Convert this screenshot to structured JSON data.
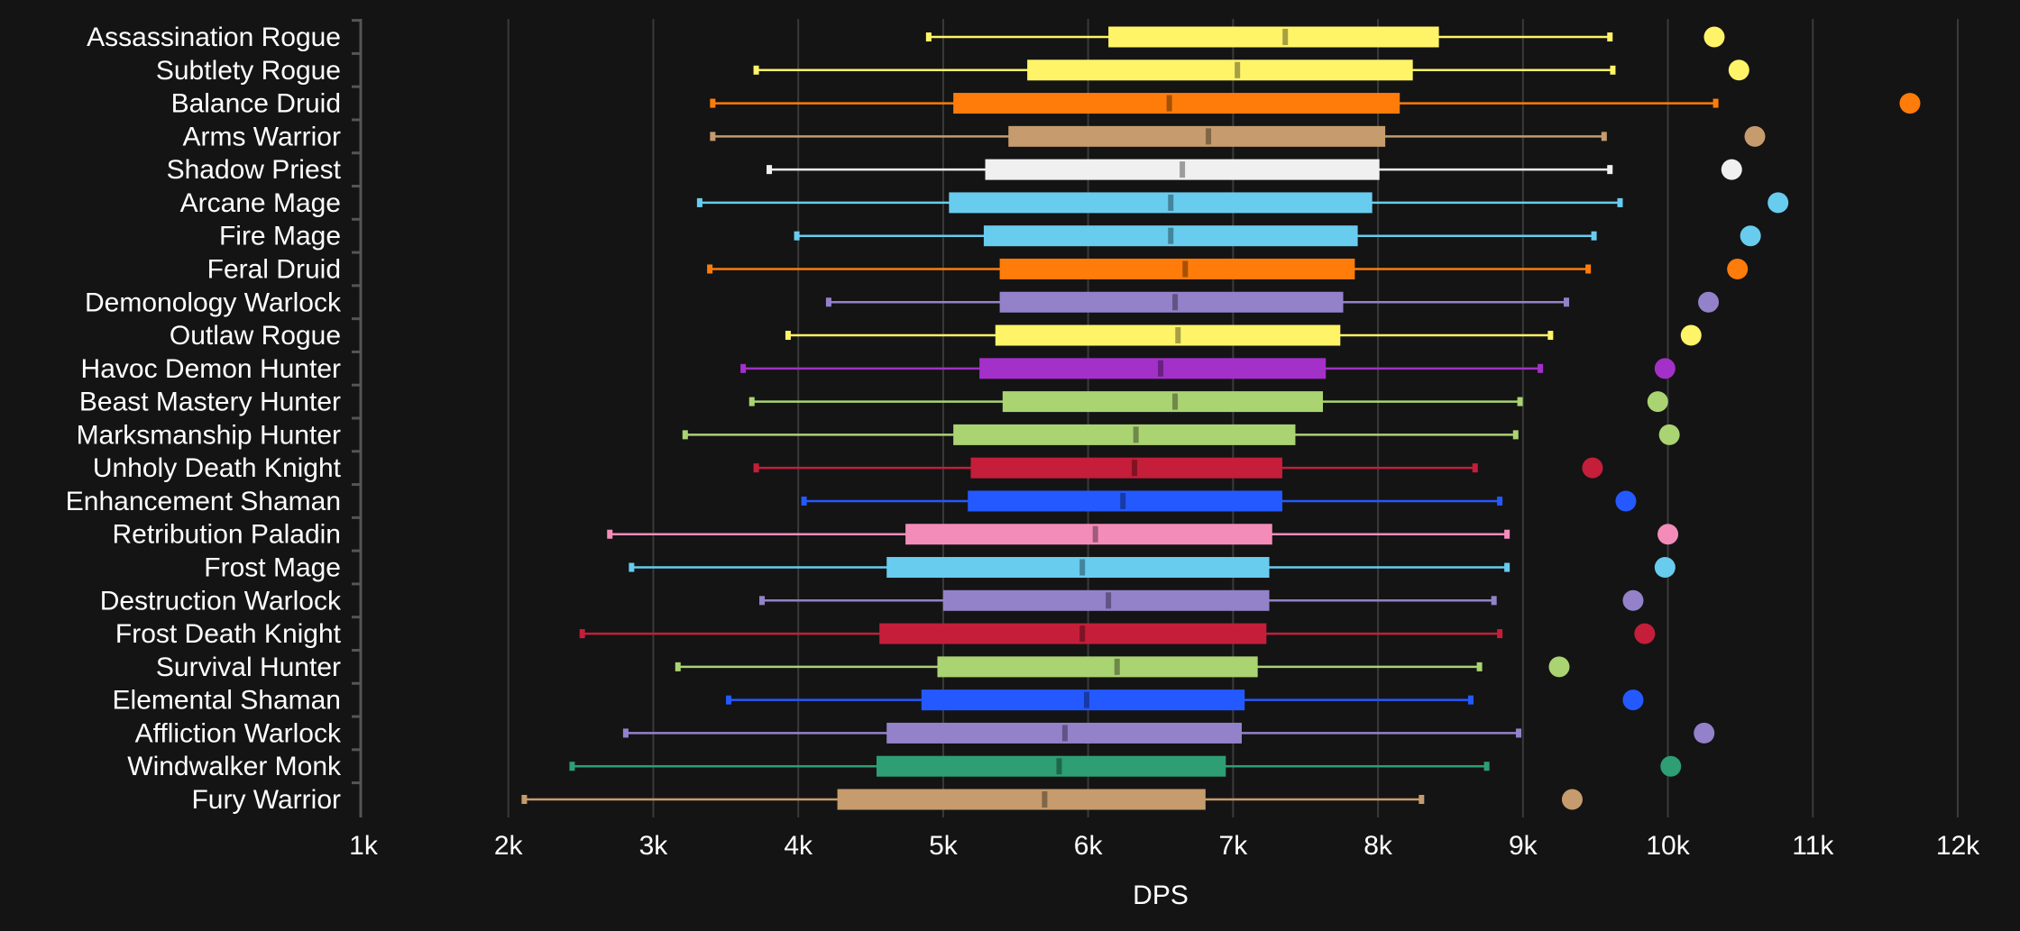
{
  "chart_data": {
    "type": "box",
    "title": "",
    "xlabel": "DPS",
    "ylabel": "",
    "xlim": [
      1000,
      12000
    ],
    "xticks": [
      1000,
      2000,
      3000,
      4000,
      5000,
      6000,
      7000,
      8000,
      9000,
      10000,
      11000,
      12000
    ],
    "xtick_labels": [
      "1k",
      "2k",
      "3k",
      "4k",
      "5k",
      "6k",
      "7k",
      "8k",
      "9k",
      "10k",
      "11k",
      "12k"
    ],
    "grid": "vertical",
    "legend": "none",
    "series": [
      {
        "name": "Assassination Rogue",
        "color": "#FFF468",
        "min": 4900,
        "q1": 6140,
        "median": 7360,
        "q3": 8420,
        "max": 9600,
        "point": 10320
      },
      {
        "name": "Subtlety Rogue",
        "color": "#FFF468",
        "min": 3710,
        "q1": 5580,
        "median": 7030,
        "q3": 8240,
        "max": 9620,
        "point": 10490
      },
      {
        "name": "Balance Druid",
        "color": "#FF7C0A",
        "min": 3410,
        "q1": 5070,
        "median": 6560,
        "q3": 8150,
        "max": 10330,
        "point": 11670
      },
      {
        "name": "Arms Warrior",
        "color": "#C69B6D",
        "min": 3410,
        "q1": 5450,
        "median": 6830,
        "q3": 8050,
        "max": 9560,
        "point": 10600
      },
      {
        "name": "Shadow Priest",
        "color": "#F0F0F0",
        "min": 3800,
        "q1": 5290,
        "median": 6650,
        "q3": 8010,
        "max": 9600,
        "point": 10440
      },
      {
        "name": "Arcane Mage",
        "color": "#68CCEF",
        "min": 3320,
        "q1": 5040,
        "median": 6570,
        "q3": 7960,
        "max": 9670,
        "point": 10760
      },
      {
        "name": "Fire Mage",
        "color": "#68CCEF",
        "min": 3990,
        "q1": 5280,
        "median": 6570,
        "q3": 7860,
        "max": 9490,
        "point": 10570
      },
      {
        "name": "Feral Druid",
        "color": "#FF7C0A",
        "min": 3390,
        "q1": 5390,
        "median": 6670,
        "q3": 7840,
        "max": 9450,
        "point": 10480
      },
      {
        "name": "Demonology Warlock",
        "color": "#9382C9",
        "min": 4210,
        "q1": 5390,
        "median": 6600,
        "q3": 7760,
        "max": 9300,
        "point": 10280
      },
      {
        "name": "Outlaw Rogue",
        "color": "#FFF468",
        "min": 3930,
        "q1": 5360,
        "median": 6620,
        "q3": 7740,
        "max": 9190,
        "point": 10160
      },
      {
        "name": "Havoc Demon Hunter",
        "color": "#A330C9",
        "min": 3620,
        "q1": 5250,
        "median": 6500,
        "q3": 7640,
        "max": 9120,
        "point": 9980
      },
      {
        "name": "Beast Mastery Hunter",
        "color": "#AAD372",
        "min": 3680,
        "q1": 5410,
        "median": 6600,
        "q3": 7620,
        "max": 8980,
        "point": 9930
      },
      {
        "name": "Marksmanship Hunter",
        "color": "#AAD372",
        "min": 3220,
        "q1": 5070,
        "median": 6330,
        "q3": 7430,
        "max": 8950,
        "point": 10010
      },
      {
        "name": "Unholy Death Knight",
        "color": "#C41E3A",
        "min": 3710,
        "q1": 5190,
        "median": 6320,
        "q3": 7340,
        "max": 8670,
        "point": 9480
      },
      {
        "name": "Enhancement Shaman",
        "color": "#2459FF",
        "min": 4040,
        "q1": 5170,
        "median": 6240,
        "q3": 7340,
        "max": 8840,
        "point": 9710
      },
      {
        "name": "Retribution Paladin",
        "color": "#F48CBA",
        "min": 2700,
        "q1": 4740,
        "median": 6050,
        "q3": 7270,
        "max": 8890,
        "point": 10000
      },
      {
        "name": "Frost Mage",
        "color": "#68CCEF",
        "min": 2850,
        "q1": 4610,
        "median": 5960,
        "q3": 7250,
        "max": 8890,
        "point": 9980
      },
      {
        "name": "Destruction Warlock",
        "color": "#9382C9",
        "min": 3750,
        "q1": 5000,
        "median": 6140,
        "q3": 7250,
        "max": 8800,
        "point": 9760
      },
      {
        "name": "Frost Death Knight",
        "color": "#C41E3A",
        "min": 2510,
        "q1": 4560,
        "median": 5960,
        "q3": 7230,
        "max": 8840,
        "point": 9840
      },
      {
        "name": "Survival Hunter",
        "color": "#AAD372",
        "min": 3170,
        "q1": 4960,
        "median": 6200,
        "q3": 7170,
        "max": 8700,
        "point": 9250
      },
      {
        "name": "Elemental Shaman",
        "color": "#2459FF",
        "min": 3520,
        "q1": 4850,
        "median": 5990,
        "q3": 7080,
        "max": 8640,
        "point": 9760
      },
      {
        "name": "Affliction Warlock",
        "color": "#9382C9",
        "min": 2810,
        "q1": 4610,
        "median": 5840,
        "q3": 7060,
        "max": 8970,
        "point": 10250
      },
      {
        "name": "Windwalker Monk",
        "color": "#2E9E74",
        "min": 2440,
        "q1": 4540,
        "median": 5800,
        "q3": 6950,
        "max": 8750,
        "point": 10020
      },
      {
        "name": "Fury Warrior",
        "color": "#C69B6D",
        "min": 2110,
        "q1": 4270,
        "median": 5700,
        "q3": 6810,
        "max": 8300,
        "point": 9340
      }
    ]
  }
}
